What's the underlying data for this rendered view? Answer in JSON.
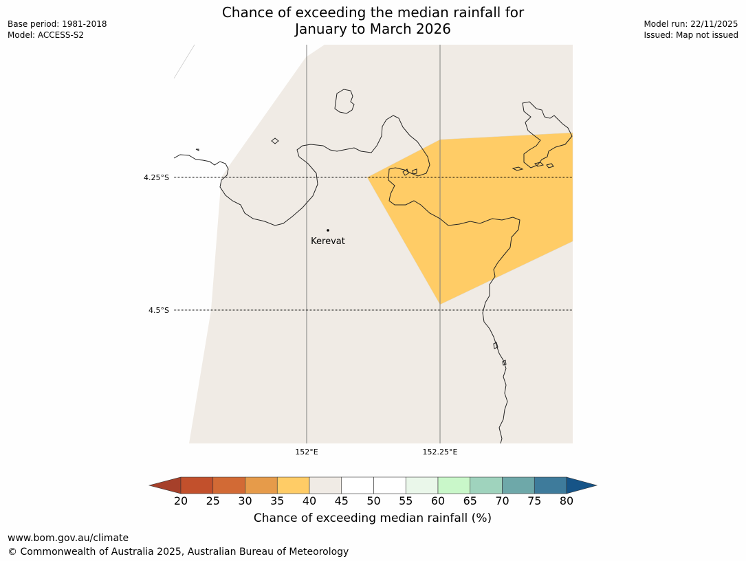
{
  "header": {
    "title_line1": "Chance of exceeding the median rainfall for",
    "title_line2": "January to March 2026",
    "base_period": "Base period: 1981-2018",
    "model": "Model: ACCESS-S2",
    "model_run": "Model run: 22/11/2025",
    "issued": "Issued: Map not issued"
  },
  "map": {
    "lat_labels": [
      "4.25°S",
      "4.5°S"
    ],
    "lon_labels": [
      "152°E",
      "152.25°E"
    ],
    "place": "Kerevat",
    "colors": {
      "land": "#f0ebe5",
      "highlight": "#ffcc66",
      "coast": "#222222"
    }
  },
  "colorbar": {
    "ticks": [
      "20",
      "25",
      "30",
      "35",
      "40",
      "45",
      "50",
      "55",
      "60",
      "65",
      "70",
      "75",
      "80"
    ],
    "colors": [
      "#a6402a",
      "#c2502c",
      "#d26a35",
      "#e69b4a",
      "#ffcc66",
      "#f0ebe5",
      "#ffffff",
      "#ffffff",
      "#eaf7ea",
      "#c9f7c9",
      "#9fd3bd",
      "#6ea8a9",
      "#3e7b9b",
      "#165487"
    ],
    "title": "Chance of exceeding median rainfall (%)"
  },
  "footer": {
    "url": "www.bom.gov.au/climate",
    "copyright": "© Commonwealth of Australia 2025, Australian Bureau of Meteorology"
  }
}
